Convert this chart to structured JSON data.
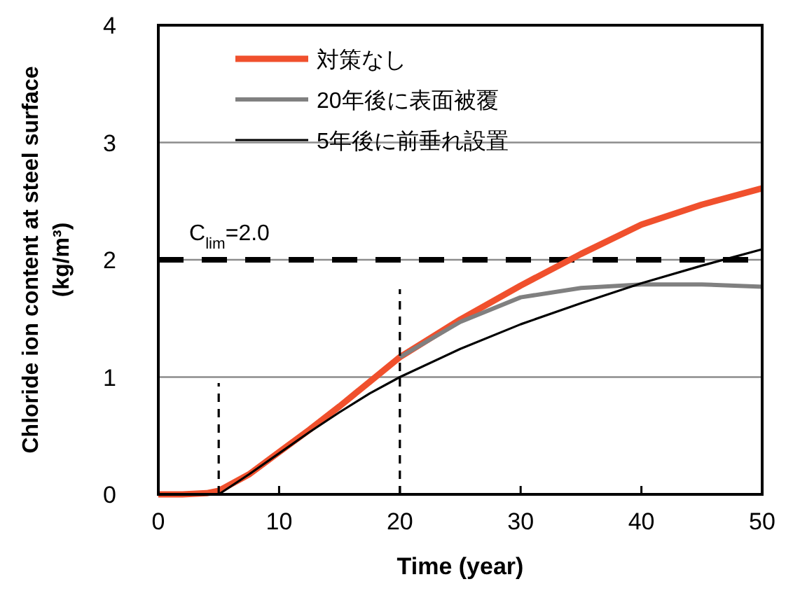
{
  "chart_data": {
    "type": "line",
    "xlabel": "Time (year)",
    "ylabel": "Chloride ion content at steel surface\n(kg/m³)",
    "xlim": [
      0,
      50
    ],
    "xticks": [
      0,
      10,
      20,
      30,
      40,
      50
    ],
    "ylim": [
      0,
      4
    ],
    "yticks": [
      0,
      1,
      2,
      3,
      4
    ],
    "grid": "y",
    "legend": "top left",
    "line_style": "solid",
    "marker": "none",
    "series": [
      {
        "name": "対策なし",
        "color": "#f0502d",
        "x": [
          0,
          2,
          4,
          5,
          7.5,
          10,
          12.5,
          15,
          17.5,
          20,
          25,
          30,
          35,
          40,
          45,
          50
        ],
        "values": [
          0,
          0,
          0.01,
          0.03,
          0.17,
          0.36,
          0.55,
          0.75,
          0.96,
          1.17,
          1.49,
          1.78,
          2.05,
          2.3,
          2.47,
          2.61
        ]
      },
      {
        "name": "20年後に表面被覆",
        "color": "#808080",
        "x": [
          20,
          25,
          30,
          35,
          40,
          45,
          50
        ],
        "values": [
          1.17,
          1.47,
          1.68,
          1.76,
          1.79,
          1.79,
          1.77
        ]
      },
      {
        "name": "5年後に前垂れ設置",
        "color": "#000000",
        "x": [
          5,
          7.5,
          10,
          12.5,
          15,
          17.5,
          20,
          25,
          30,
          35,
          40,
          45,
          50
        ],
        "values": [
          0,
          0.17,
          0.35,
          0.53,
          0.7,
          0.86,
          1.0,
          1.24,
          1.45,
          1.63,
          1.8,
          1.95,
          2.09
        ]
      },
      {
        "color": "#000000",
        "line_style": "dashed",
        "x": [
          5,
          5
        ],
        "values": [
          0,
          0.95
        ]
      },
      {
        "color": "#000000",
        "line_style": "dashed",
        "x": [
          20,
          20
        ],
        "values": [
          0,
          1.75
        ]
      }
    ],
    "ref_lines": [
      {
        "axis": "y",
        "value": 2,
        "label": "C$_{lim}$=2.0",
        "color": "#000000",
        "line_style": "dashed"
      }
    ]
  }
}
